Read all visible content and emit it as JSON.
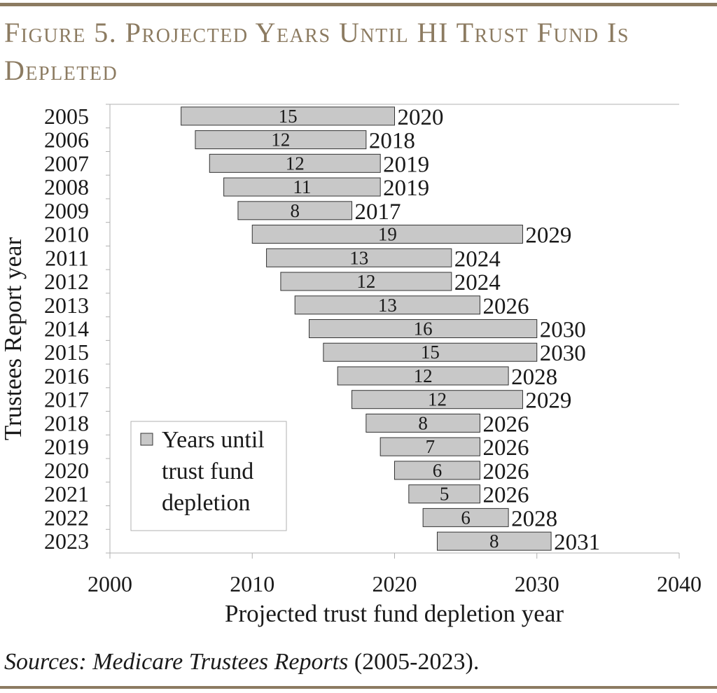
{
  "title": "Figure 5. Projected Years Until HI Trust Fund Is Depleted",
  "sources": {
    "prefix": "Sources: ",
    "name": "Medicare Trustees Reports",
    "suffix": " (2005-2023)."
  },
  "colors": {
    "accent": "#8c7b61",
    "bar_fill": "#c8c8c8",
    "bar_stroke": "#333333"
  },
  "chart_data": {
    "type": "bar",
    "orientation": "horizontal-floating",
    "xlabel": "Projected trust fund depletion year",
    "ylabel": "Trustees Report year",
    "xlim": [
      2000,
      2040
    ],
    "xticks": [
      2000,
      2010,
      2020,
      2030,
      2040
    ],
    "legend": {
      "label_lines": [
        "Years until",
        "trust fund",
        "depletion"
      ],
      "position": "lower-left"
    },
    "series": [
      {
        "name": "Years until trust fund depletion",
        "report_years": [
          2005,
          2006,
          2007,
          2008,
          2009,
          2010,
          2011,
          2012,
          2013,
          2014,
          2015,
          2016,
          2017,
          2018,
          2019,
          2020,
          2021,
          2022,
          2023
        ],
        "depletion_years": [
          2020,
          2018,
          2019,
          2019,
          2017,
          2029,
          2024,
          2024,
          2026,
          2030,
          2030,
          2028,
          2029,
          2026,
          2026,
          2026,
          2026,
          2028,
          2031
        ],
        "years_until": [
          15,
          12,
          12,
          11,
          8,
          19,
          13,
          12,
          13,
          16,
          15,
          12,
          12,
          8,
          7,
          6,
          5,
          6,
          8
        ]
      }
    ]
  }
}
